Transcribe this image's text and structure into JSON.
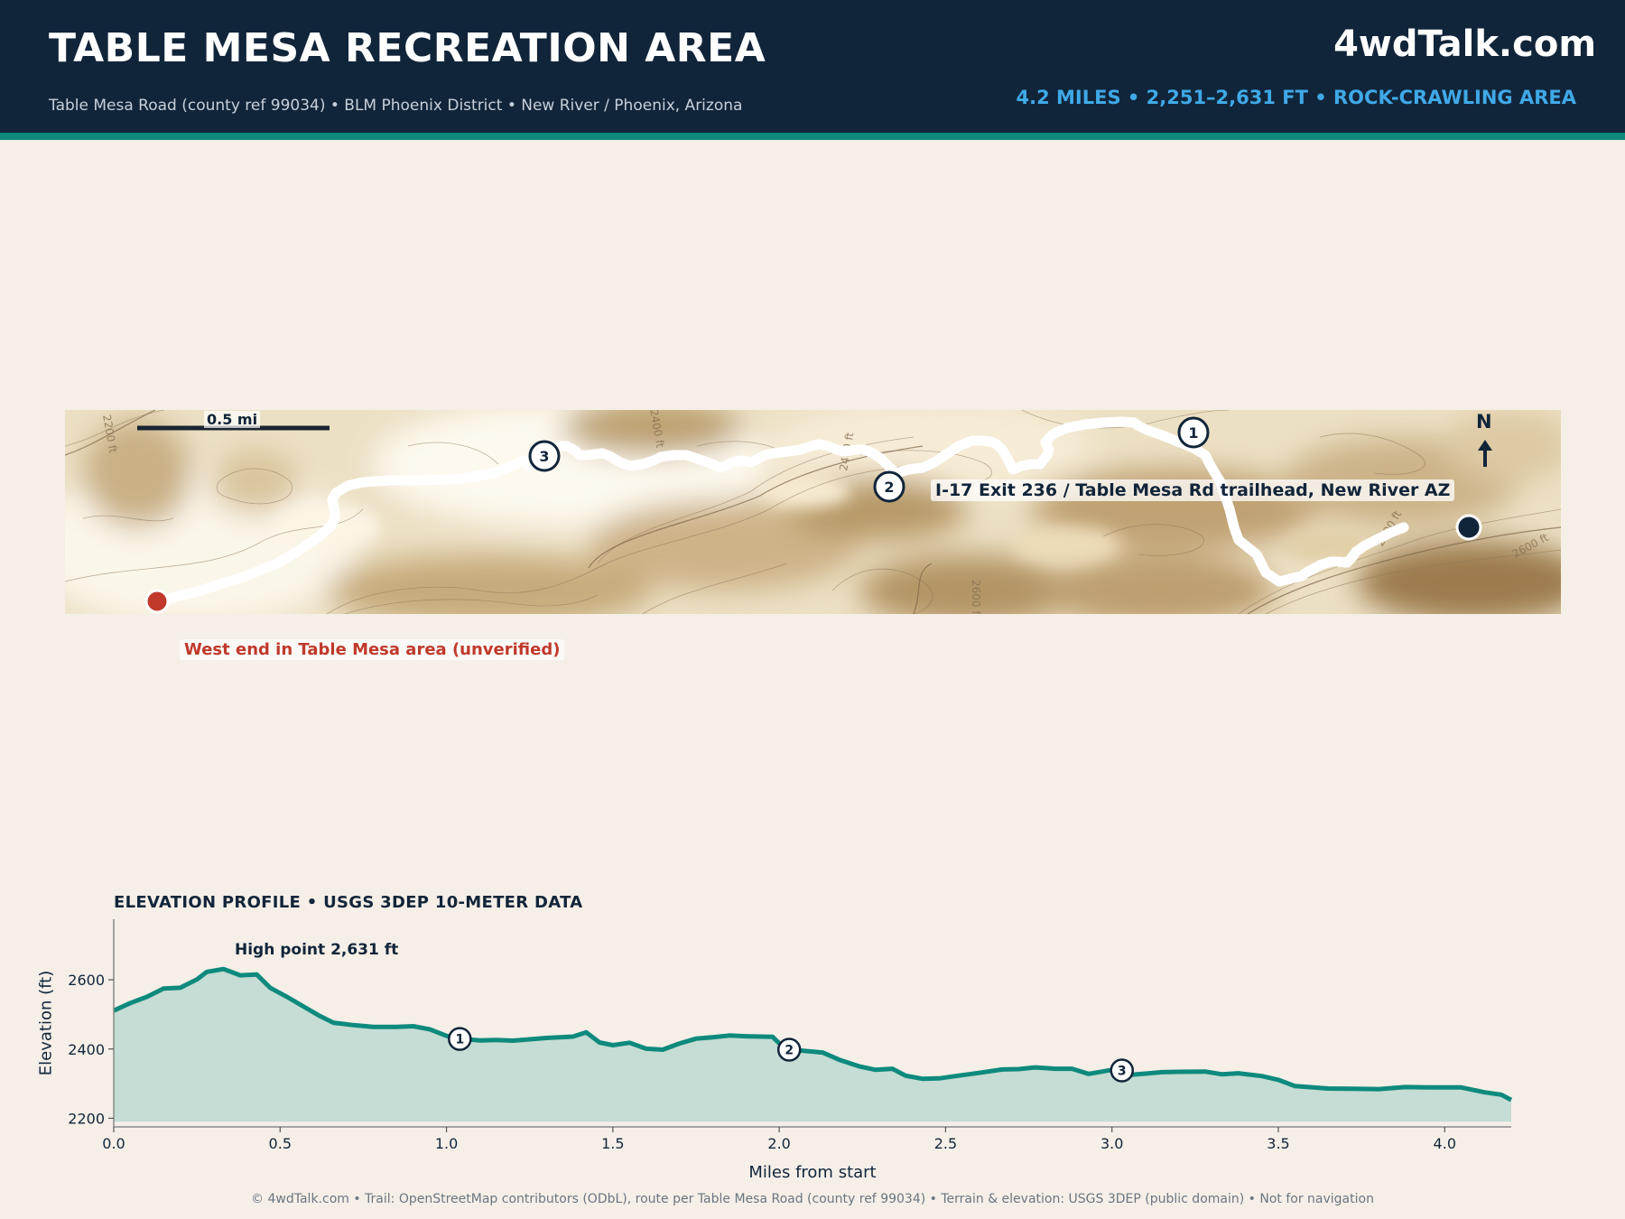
{
  "header": {
    "title": "TABLE MESA RECREATION AREA",
    "subtitle": "Table Mesa Road (county ref 99034)  •  BLM Phoenix District  •  New River / Phoenix, Arizona",
    "brand": "4wdTalk.com",
    "stats": "4.2 MILES  •  2,251–2,631 FT  •  ROCK-CRAWLING AREA"
  },
  "colors": {
    "header_bg": "#11253a",
    "accent_stripe": "#0e8a7d",
    "stats_text": "#3fa9e8",
    "route_line": "#1f6fc0",
    "start_marker": "#c0392b",
    "end_marker": "#11253a",
    "profile_line": "#0e8a7d",
    "profile_fill": "#c5ddd4",
    "page_bg": "#f5efe8"
  },
  "map": {
    "scale_label": "0.5 mi",
    "north_label": "N",
    "north_icon": "north-arrow-icon",
    "contour_labels": [
      "2200 ft",
      "2400 ft",
      "2400 ft",
      "2600 ft",
      "2600 ft",
      "2600 ft"
    ],
    "waypoints": [
      "1",
      "2",
      "3"
    ],
    "start_label": "West end in Table Mesa area (unverified)",
    "end_label": "I-17 Exit 236 / Table Mesa Rd trailhead, New River AZ"
  },
  "chart_data": {
    "type": "area",
    "title": "ELEVATION PROFILE  •  USGS 3DEP 10-METER DATA",
    "xlabel": "Miles from start",
    "ylabel": "Elevation (ft)",
    "xlim": [
      0,
      4.2
    ],
    "ylim": [
      2175,
      2775
    ],
    "xticks": [
      0.0,
      0.5,
      1.0,
      1.5,
      2.0,
      2.5,
      3.0,
      3.5,
      4.0
    ],
    "yticks": [
      2200,
      2400,
      2600
    ],
    "grid": false,
    "annotation": "High point 2,631 ft",
    "series": [
      {
        "x": [
          0.0,
          0.05,
          0.1,
          0.15,
          0.2,
          0.25,
          0.28,
          0.33,
          0.38,
          0.43,
          0.47,
          0.52,
          0.57,
          0.62,
          0.66,
          0.72,
          0.78,
          0.85,
          0.9,
          0.95,
          1.0,
          1.05,
          1.1,
          1.15,
          1.2,
          1.25,
          1.3,
          1.38,
          1.42,
          1.46,
          1.5,
          1.55,
          1.6,
          1.65,
          1.7,
          1.75,
          1.8,
          1.85,
          1.9,
          1.98,
          2.02,
          2.06,
          2.13,
          2.18,
          2.24,
          2.29,
          2.34,
          2.38,
          2.43,
          2.48,
          2.53,
          2.6,
          2.67,
          2.72,
          2.77,
          2.83,
          2.88,
          2.93,
          3.0,
          3.05,
          3.1,
          3.15,
          3.2,
          3.28,
          3.33,
          3.38,
          3.45,
          3.5,
          3.55,
          3.65,
          3.72,
          3.8,
          3.88,
          3.95,
          4.05,
          4.12,
          4.17,
          4.2
        ],
        "y": [
          2511,
          2533,
          2551,
          2575,
          2577,
          2601,
          2623,
          2631,
          2613,
          2615,
          2577,
          2551,
          2523,
          2495,
          2476,
          2469,
          2464,
          2464,
          2466,
          2457,
          2438,
          2429,
          2425,
          2426,
          2424,
          2428,
          2432,
          2436,
          2448,
          2419,
          2411,
          2418,
          2401,
          2398,
          2416,
          2430,
          2434,
          2439,
          2437,
          2435,
          2398,
          2396,
          2390,
          2369,
          2350,
          2340,
          2343,
          2323,
          2314,
          2315,
          2322,
          2331,
          2341,
          2342,
          2347,
          2343,
          2343,
          2328,
          2340,
          2325,
          2329,
          2333,
          2334,
          2335,
          2327,
          2330,
          2322,
          2311,
          2293,
          2286,
          2285,
          2284,
          2290,
          2289,
          2289,
          2275,
          2268,
          2253
        ]
      }
    ],
    "waypoints": [
      {
        "label": "1",
        "x": 1.04,
        "y": 2429
      },
      {
        "label": "2",
        "x": 2.03,
        "y": 2398
      },
      {
        "label": "3",
        "x": 3.03,
        "y": 2338
      }
    ]
  },
  "footer": {
    "attribution": "© 4wdTalk.com  •  Trail: OpenStreetMap contributors (ODbL), route per Table Mesa Road (county ref 99034)  •  Terrain & elevation: USGS 3DEP (public domain)  •  Not for navigation"
  }
}
